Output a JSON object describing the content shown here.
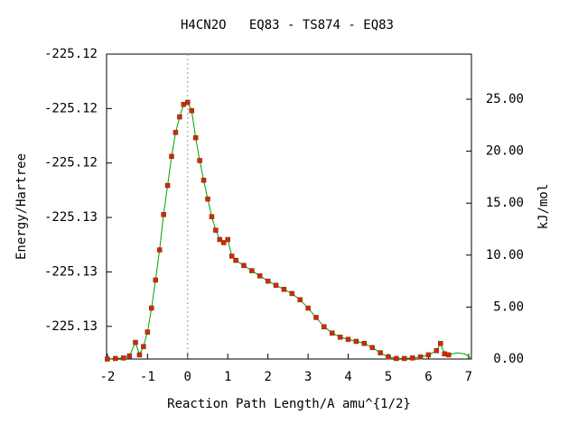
{
  "chart_data": {
    "type": "line",
    "title": "H4CN2O   EQ83 - TS874 - EQ83",
    "x_label": "Reaction Path Length/A amu^{1/2}",
    "y_label": "Energy/Hartree",
    "y2_label": "kJ/mol",
    "xlim": [
      -2.02,
      7.07
    ],
    "xticks": [
      -2,
      -1,
      0,
      1,
      2,
      3,
      4,
      5,
      6,
      7
    ],
    "ylim": [
      -225.1302,
      -225.119
    ],
    "yticks": [
      {
        "value": -225.119,
        "label": "-225.12"
      },
      {
        "value": -225.121,
        "label": "-225.12"
      },
      {
        "value": -225.123,
        "label": "-225.12"
      },
      {
        "value": -225.125,
        "label": "-225.13"
      },
      {
        "value": -225.127,
        "label": "-225.13"
      },
      {
        "value": -225.129,
        "label": "-225.13"
      }
    ],
    "y2lim": [
      0,
      29.34
    ],
    "y2ticks": [
      {
        "value": 0,
        "label": "0.00"
      },
      {
        "value": 5,
        "label": "5.00"
      },
      {
        "value": 10,
        "label": "10.00"
      },
      {
        "value": 15,
        "label": "15.00"
      },
      {
        "value": 20,
        "label": "20.00"
      },
      {
        "value": 25,
        "label": "25.00"
      }
    ],
    "vline_x": 0,
    "series": [
      {
        "type": "line",
        "color": "#00a000",
        "axis": "y2",
        "x": [
          -2,
          -1.8,
          -1.6,
          -1.45,
          -1.3,
          -1.2,
          -1.1,
          -1.0,
          -0.9,
          -0.8,
          -0.7,
          -0.6,
          -0.5,
          -0.4,
          -0.3,
          -0.2,
          -0.1,
          0,
          0.1,
          0.2,
          0.3,
          0.4,
          0.5,
          0.6,
          0.7,
          0.8,
          0.9,
          1.0,
          1.1,
          1.2,
          1.4,
          1.6,
          1.8,
          2.0,
          2.2,
          2.4,
          2.6,
          2.8,
          3.0,
          3.2,
          3.4,
          3.6,
          3.8,
          4.0,
          4.2,
          4.4,
          4.6,
          4.8,
          5.0,
          5.2,
          5.4,
          5.6,
          5.8,
          6.0,
          6.2,
          6.3,
          6.4,
          6.5,
          6.7,
          6.9,
          7.05
        ],
        "values": [
          0,
          0.05,
          0.1,
          0.3,
          1.6,
          0.4,
          1.2,
          2.6,
          4.9,
          7.6,
          10.5,
          13.9,
          16.7,
          19.5,
          21.8,
          23.3,
          24.5,
          24.7,
          23.9,
          21.3,
          19.1,
          17.2,
          15.4,
          13.7,
          12.4,
          11.5,
          11.2,
          11.5,
          9.9,
          9.5,
          9.0,
          8.5,
          8.0,
          7.5,
          7.1,
          6.7,
          6.3,
          5.7,
          4.9,
          4.0,
          3.1,
          2.5,
          2.1,
          1.9,
          1.7,
          1.5,
          1.1,
          0.6,
          0.2,
          0.05,
          0.05,
          0.1,
          0.2,
          0.4,
          0.8,
          1.5,
          0.5,
          0.4,
          0.6,
          0.5,
          0.1
        ]
      },
      {
        "type": "scatter",
        "color": "#d02808",
        "axis": "y2",
        "x": [
          -2,
          -1.8,
          -1.6,
          -1.45,
          -1.3,
          -1.2,
          -1.1,
          -1.0,
          -0.9,
          -0.8,
          -0.7,
          -0.6,
          -0.5,
          -0.4,
          -0.3,
          -0.2,
          -0.1,
          0,
          0.1,
          0.2,
          0.3,
          0.4,
          0.5,
          0.6,
          0.7,
          0.8,
          0.9,
          1.0,
          1.1,
          1.2,
          1.4,
          1.6,
          1.8,
          2.0,
          2.2,
          2.4,
          2.6,
          2.8,
          3.0,
          3.2,
          3.4,
          3.6,
          3.8,
          4.0,
          4.2,
          4.4,
          4.6,
          4.8,
          5.0,
          5.2,
          5.4,
          5.6,
          5.8,
          6.0,
          6.2,
          6.3,
          6.4,
          6.5
        ],
        "values": [
          0,
          0.05,
          0.1,
          0.3,
          1.6,
          0.4,
          1.2,
          2.6,
          4.9,
          7.6,
          10.5,
          13.9,
          16.7,
          19.5,
          21.8,
          23.3,
          24.5,
          24.7,
          23.9,
          21.3,
          19.1,
          17.2,
          15.4,
          13.7,
          12.4,
          11.5,
          11.2,
          11.5,
          9.9,
          9.5,
          9.0,
          8.5,
          8.0,
          7.5,
          7.1,
          6.7,
          6.3,
          5.7,
          4.9,
          4.0,
          3.1,
          2.5,
          2.1,
          1.9,
          1.7,
          1.5,
          1.1,
          0.6,
          0.2,
          0.05,
          0.05,
          0.1,
          0.2,
          0.4,
          0.8,
          1.5,
          0.5,
          0.4
        ]
      }
    ]
  }
}
